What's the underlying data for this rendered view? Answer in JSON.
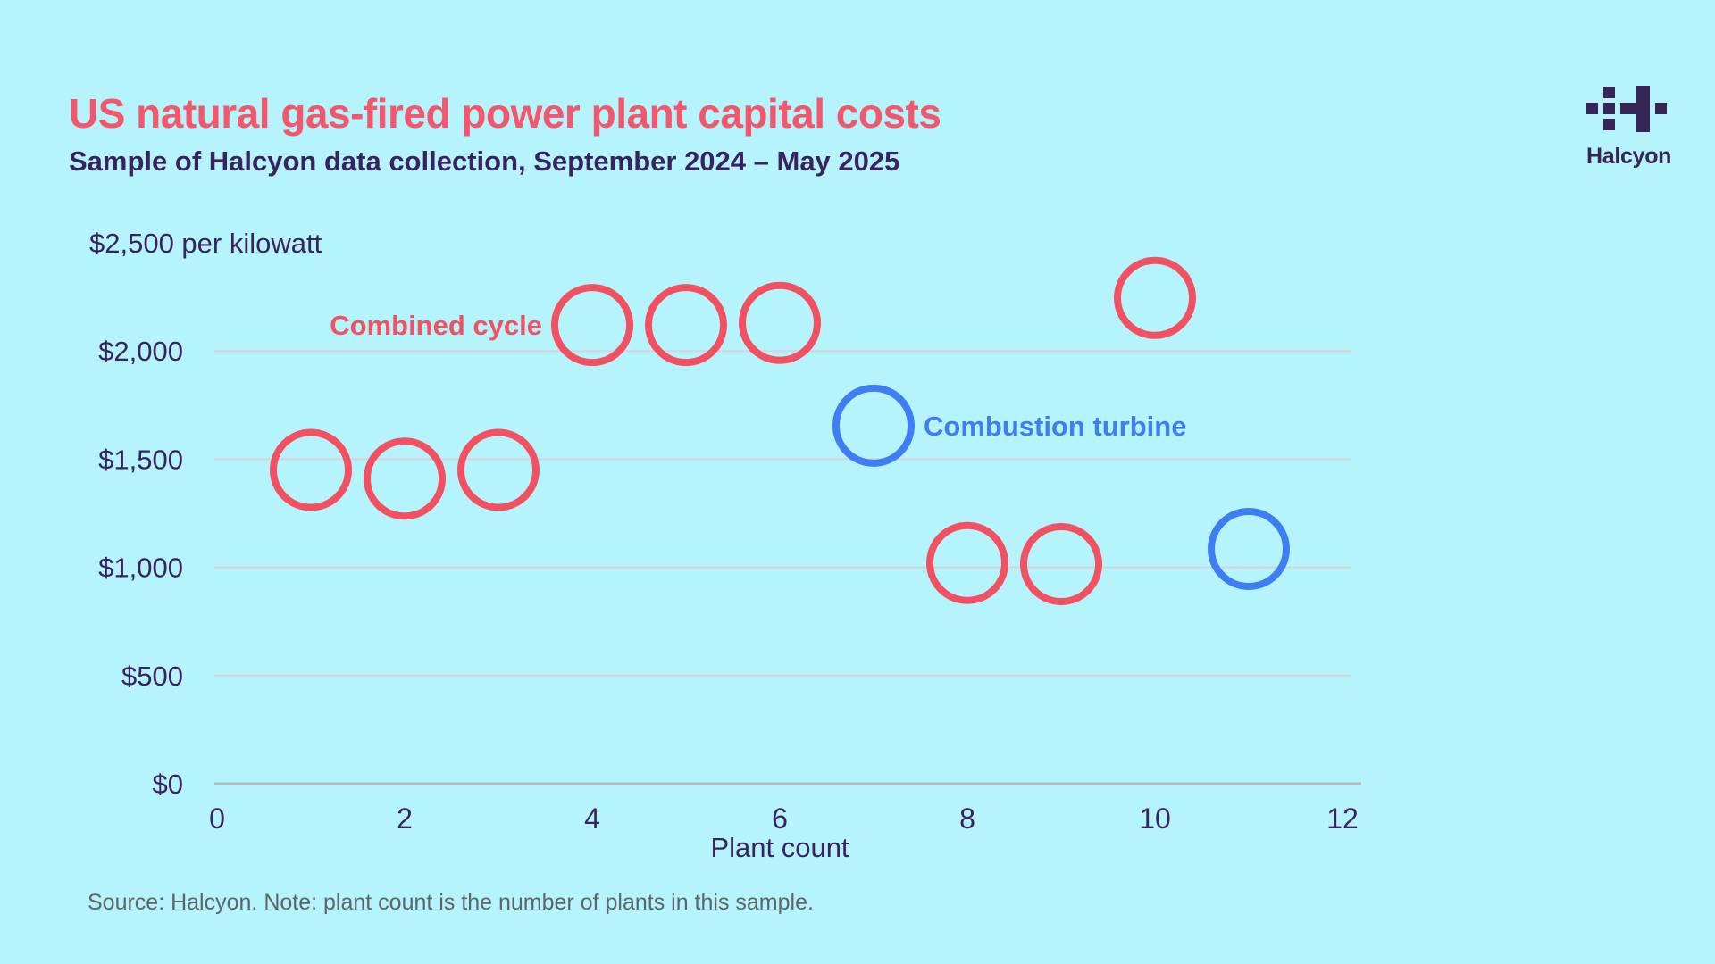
{
  "header": {
    "title": "US natural gas-fired power plant capital costs",
    "subtitle": "Sample of Halcyon data collection, September 2024 – May 2025"
  },
  "logo": {
    "brand": "Halcyon"
  },
  "source_note": "Source: Halcyon. Note: plant count is the number of plants in this sample.",
  "colors": {
    "background": "#b6f4fd",
    "title_text": "#f4566b",
    "heading_text": "#392260",
    "combined_cycle_red": "#f25162",
    "combustion_turbine_blue": "#3f7ef2",
    "gridline": "#d9d2d6",
    "axis_line": "#b9babd",
    "source_text": "#5d6569",
    "logo_purple": "#372558"
  },
  "chart_data": {
    "type": "scatter",
    "title": "US natural gas-fired power plant capital costs",
    "xlabel": "Plant count",
    "ylabel": "",
    "y_axis_top_label": "$2,500 per kilowatt",
    "xlim": [
      0,
      12
    ],
    "ylim": [
      0,
      2500
    ],
    "x_ticks": [
      0,
      2,
      4,
      6,
      8,
      10,
      12
    ],
    "y_ticks": [
      0,
      500,
      1000,
      1500,
      2000
    ],
    "y_tick_labels": [
      "$0",
      "$500",
      "$1,000",
      "$1,500",
      "$2,000"
    ],
    "grid": "horizontal gridlines only, no gridline at 2500",
    "legend_position": "inline labels beside points",
    "marker_style": "large open circles",
    "series": [
      {
        "name": "Combined cycle",
        "color": "#f25162",
        "points": [
          [
            1,
            1450
          ],
          [
            2,
            1410
          ],
          [
            3,
            1450
          ],
          [
            4,
            2120
          ],
          [
            5,
            2120
          ],
          [
            6,
            2130
          ],
          [
            8,
            1020
          ],
          [
            9,
            1015
          ],
          [
            10,
            2245
          ]
        ],
        "label_anchor_point": [
          4,
          2120
        ],
        "label_side": "left"
      },
      {
        "name": "Combustion turbine",
        "color": "#3f7ef2",
        "points": [
          [
            7,
            1655
          ],
          [
            11,
            1085
          ]
        ],
        "label_anchor_point": [
          7,
          1655
        ],
        "label_side": "right"
      }
    ]
  }
}
